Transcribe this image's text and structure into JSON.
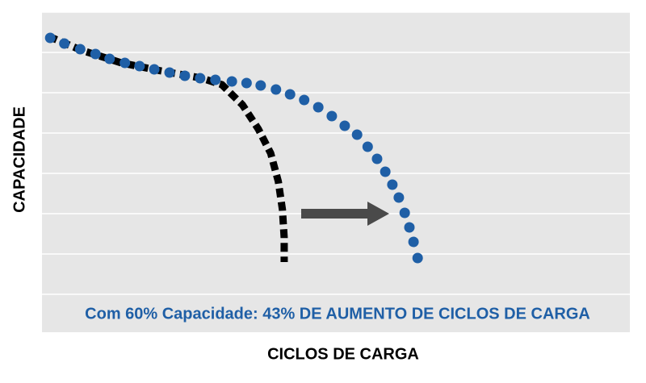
{
  "chart_data": {
    "type": "line",
    "y_label": "CAPACIDADE",
    "x_label": "CICLOS DE CARGA",
    "annotation": "Com 60% Capacidade: 43% DE AUMENTO DE CICLOS DE CARGA",
    "xlim": [
      0,
      100
    ],
    "ylim": [
      0,
      7
    ],
    "series": [
      {
        "color": "#000000",
        "style": "dashed",
        "x": [
          1.1,
          6.6,
          13.5,
          20.3,
          27.2,
          30.6,
          34.1,
          36.8,
          38.9,
          40.2,
          40.9,
          41.2,
          41.2
        ],
        "values": [
          6.4,
          6.06,
          5.74,
          5.54,
          5.36,
          5.2,
          4.7,
          4.1,
          3.5,
          2.8,
          2.1,
          1.4,
          0.8
        ]
      },
      {
        "color": "#1f5fa6",
        "style": "dotted",
        "x": [
          1.4,
          3.8,
          6.5,
          9.1,
          11.5,
          14.1,
          16.6,
          19.1,
          21.7,
          24.3,
          26.9,
          29.5,
          32.3,
          34.8,
          37.2,
          39.8,
          42.2,
          44.6,
          47.0,
          49.3,
          51.5,
          53.6,
          55.4,
          57.0,
          58.4,
          59.6,
          60.7,
          61.7,
          62.5,
          63.2,
          63.9
        ],
        "values": [
          6.36,
          6.22,
          6.08,
          5.96,
          5.84,
          5.74,
          5.66,
          5.58,
          5.5,
          5.42,
          5.36,
          5.32,
          5.28,
          5.24,
          5.18,
          5.08,
          4.96,
          4.82,
          4.64,
          4.42,
          4.18,
          3.96,
          3.66,
          3.36,
          3.04,
          2.72,
          2.4,
          2.02,
          1.66,
          1.3,
          0.9
        ]
      }
    ]
  }
}
